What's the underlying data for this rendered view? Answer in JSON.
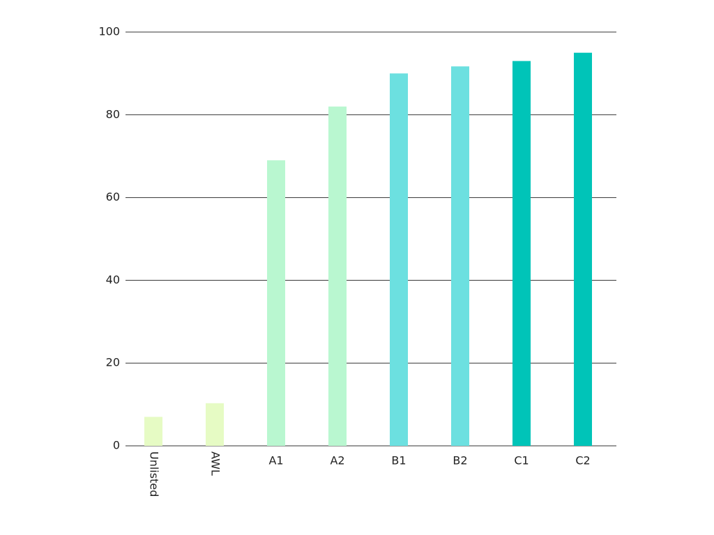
{
  "chart_data": {
    "type": "bar",
    "categories": [
      "Unlisted",
      "AWL",
      "A1",
      "A2",
      "B1",
      "B2",
      "C1",
      "C2"
    ],
    "values": [
      7,
      10.3,
      69,
      82,
      90,
      91.7,
      93,
      95
    ],
    "colors": [
      "#e6fbc4",
      "#e6fbc4",
      "#b9f7d0",
      "#b9f7d0",
      "#6ce0e0",
      "#6ce0e0",
      "#00c4b8",
      "#00c4b8"
    ],
    "ylim": [
      0,
      100
    ],
    "yticks": [
      0,
      20,
      40,
      60,
      80,
      100
    ],
    "grid": true
  }
}
